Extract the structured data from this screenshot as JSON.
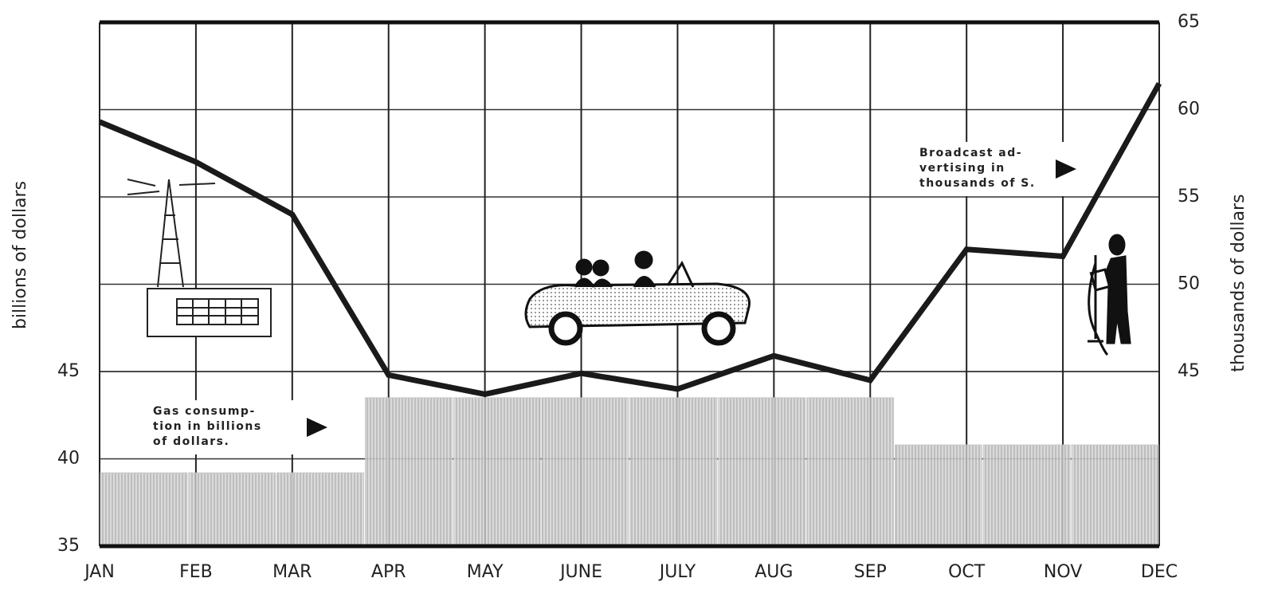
{
  "chart_data": {
    "type": "bar",
    "categories": [
      "JAN",
      "FEB",
      "MAR",
      "APR",
      "MAY",
      "JUNE",
      "JULY",
      "AUG",
      "SEP",
      "OCT",
      "NOV",
      "DEC"
    ],
    "series": [
      {
        "type": "bar",
        "color": "#c4c4c4",
        "values": [
          39.2,
          39.2,
          39.2,
          43.5,
          43.5,
          43.5,
          43.5,
          43.5,
          43.5,
          40.8,
          40.8,
          40.8
        ]
      },
      {
        "type": "line",
        "axis": "y2",
        "color": "#1a1a1a",
        "values": [
          59.3,
          57.0,
          54.0,
          44.8,
          43.7,
          44.9,
          44.0,
          45.9,
          44.5,
          52.0,
          51.6,
          61.5
        ]
      }
    ],
    "ylim": [
      35,
      65
    ],
    "yticks": [
      35,
      40,
      45
    ],
    "y2lim": [
      35,
      65
    ],
    "y2ticks": [
      45,
      50,
      55,
      60,
      65
    ],
    "y_label": "billions of dollars",
    "y2_label": "thousands of dollars",
    "annotations": [
      [
        "Gas consump-",
        "tion in billions",
        "of dollars."
      ],
      [
        "Broadcast ad-",
        "vertising in",
        "thousands of S."
      ]
    ],
    "grid": true
  }
}
